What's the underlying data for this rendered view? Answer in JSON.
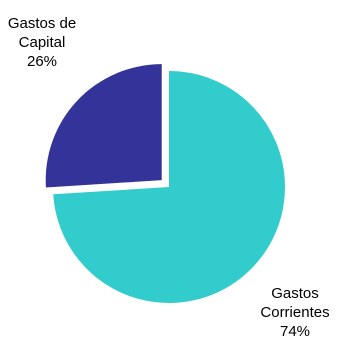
{
  "chart_data": {
    "type": "pie",
    "title": "",
    "legend": "none",
    "slices": [
      {
        "name_lines": [
          "Gastos",
          "Corrientes"
        ],
        "value": 74,
        "percent_label": "74%",
        "color": "#33CCCC"
      },
      {
        "name_lines": [
          "Gastos de",
          "Capital"
        ],
        "value": 26,
        "percent_label": "26%",
        "color": "#333399"
      }
    ]
  }
}
